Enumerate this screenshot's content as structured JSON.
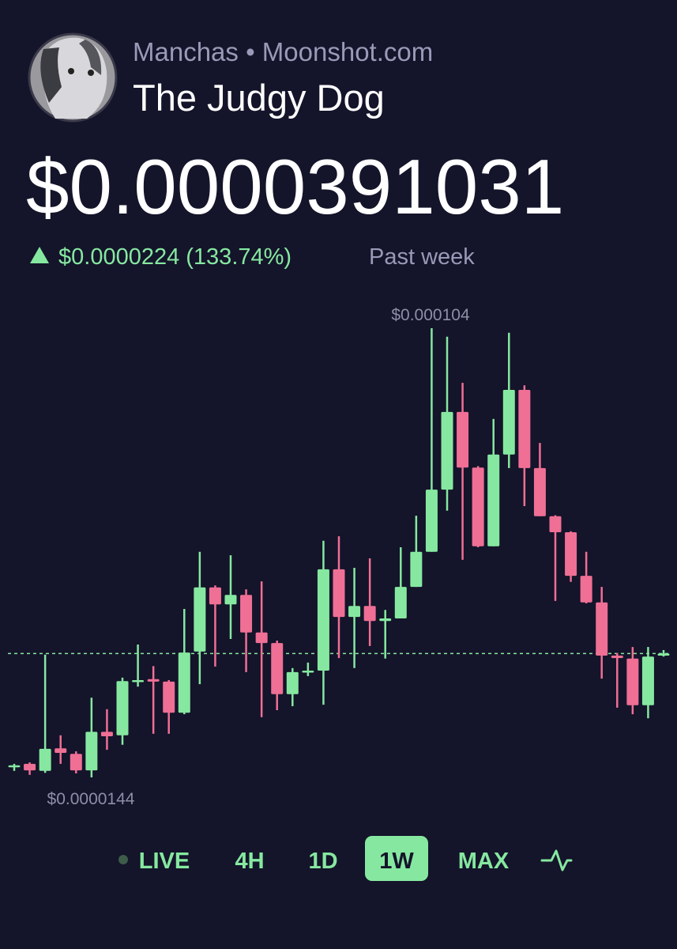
{
  "header": {
    "source": "Manchas • Moonshot.com",
    "title": "The Judgy Dog"
  },
  "price": "$0.0000391031",
  "change": {
    "amount": "$0.0000224 (133.74%)",
    "period": "Past week"
  },
  "chart_data": {
    "type": "candlestick",
    "up_color": "#86e8a0",
    "down_color": "#ef6f95",
    "ylim": [
      1.44e-05,
      0.000104
    ],
    "high_label": {
      "value": 0.000104,
      "label": "$0.000104"
    },
    "low_label": {
      "value": 1.44e-05,
      "label": "$0.0000144"
    },
    "last_price": 3.91031e-05,
    "open": [
      1.67e-05,
      1.71e-05,
      1.57e-05,
      2.02e-05,
      1.91e-05,
      1.58e-05,
      2.35e-05,
      2.28e-05,
      3.35e-05,
      3.4e-05,
      3.35e-05,
      2.73e-05,
      3.95e-05,
      5.23e-05,
      4.89e-05,
      5.08e-05,
      4.33e-05,
      4.12e-05,
      3.1e-05,
      3.54e-05,
      3.57e-05,
      5.59e-05,
      4.64e-05,
      4.86e-05,
      4.56e-05,
      4.61e-05,
      5.24e-05,
      5.94e-05,
      7.18e-05,
      8.73e-05,
      7.62e-05,
      6.05e-05,
      7.88e-05,
      9.17e-05,
      7.61e-05,
      6.65e-05,
      6.33e-05,
      5.46e-05,
      4.93e-05,
      3.87e-05,
      3.81e-05,
      2.88e-05,
      3.87e-05
    ],
    "high": [
      1.71e-05,
      1.74e-05,
      3.89e-05,
      2.28e-05,
      1.96e-05,
      3.03e-05,
      2.8e-05,
      3.43e-05,
      4.09e-05,
      3.66e-05,
      3.38e-05,
      4.8e-05,
      5.94e-05,
      5.27e-05,
      5.87e-05,
      5.19e-05,
      5.35e-05,
      4.17e-05,
      3.62e-05,
      3.73e-05,
      6.16e-05,
      6.25e-05,
      5.62e-05,
      5.81e-05,
      4.78e-05,
      6.03e-05,
      6.66e-05,
      0.000104,
      0.0001023,
      9.31e-05,
      7.65e-05,
      8.59e-05,
      0.0001031,
      9.26e-05,
      8.11e-05,
      6.67e-05,
      6.35e-05,
      5.94e-05,
      5.24e-05,
      3.92e-05,
      4.04e-05,
      4.04e-05,
      3.98e-05
    ],
    "low": [
      1.57e-05,
      1.49e-05,
      1.53e-05,
      1.71e-05,
      1.52e-05,
      1.44e-05,
      1.99e-05,
      2.09e-05,
      3.25e-05,
      2.31e-05,
      2.31e-05,
      2.7e-05,
      3.3e-05,
      3.65e-05,
      4.2e-05,
      3.54e-05,
      2.64e-05,
      2.78e-05,
      2.86e-05,
      3.46e-05,
      2.89e-05,
      3.82e-05,
      3.62e-05,
      4.06e-05,
      3.81e-05,
      4.61e-05,
      5.24e-05,
      5.94e-05,
      6.76e-05,
      5.78e-05,
      6.03e-05,
      6.05e-05,
      7.61e-05,
      6.85e-05,
      6.65e-05,
      4.96e-05,
      5.34e-05,
      4.91e-05,
      3.41e-05,
      2.83e-05,
      2.7e-05,
      2.62e-05,
      3.85e-05
    ],
    "close": [
      1.68e-05,
      1.58e-05,
      2.01e-05,
      1.93e-05,
      1.58e-05,
      2.35e-05,
      2.26e-05,
      3.36e-05,
      3.38e-05,
      3.35e-05,
      2.73e-05,
      3.93e-05,
      5.23e-05,
      4.89e-05,
      5.08e-05,
      4.33e-05,
      4.12e-05,
      3.1e-05,
      3.54e-05,
      3.57e-05,
      5.59e-05,
      4.64e-05,
      4.86e-05,
      4.56e-05,
      4.61e-05,
      5.24e-05,
      5.94e-05,
      7.18e-05,
      8.73e-05,
      7.62e-05,
      6.05e-05,
      7.88e-05,
      9.17e-05,
      7.61e-05,
      6.65e-05,
      6.33e-05,
      5.46e-05,
      4.93e-05,
      3.87e-05,
      3.82e-05,
      2.88e-05,
      3.85e-05,
      3.91e-05
    ]
  },
  "nav": {
    "tabs": [
      "LIVE",
      "4H",
      "1D",
      "1W",
      "MAX"
    ],
    "active": 3
  }
}
